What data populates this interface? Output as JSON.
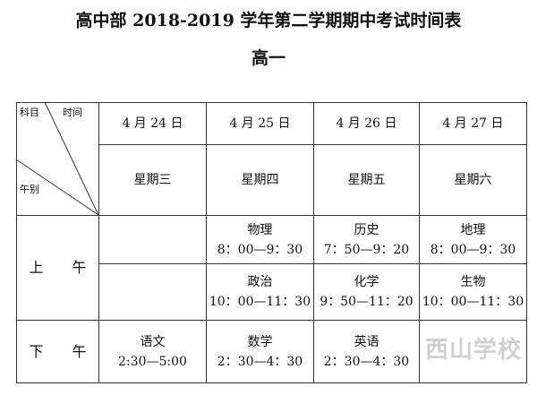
{
  "title": "高中部 2018-2019 学年第二学期期中考试时间表",
  "subtitle": "高一",
  "corner": {
    "subject": "科目",
    "time": "时间",
    "period": "午别"
  },
  "dates": [
    "4 月 24 日",
    "4 月 25 日",
    "4 月 26 日",
    "4 月 27 日"
  ],
  "weekdays": [
    "星期三",
    "星期四",
    "星期五",
    "星期六"
  ],
  "morning_label": "上　　午",
  "afternoon_label": "下　　午",
  "morning1": [
    {
      "s": "",
      "t": ""
    },
    {
      "s": "物理",
      "t": "8：00—9：30"
    },
    {
      "s": "历史",
      "t": "7：50—9：20"
    },
    {
      "s": "地理",
      "t": "8：00—9：30"
    }
  ],
  "morning2": [
    {
      "s": "",
      "t": ""
    },
    {
      "s": "政治",
      "t": "10：00—11：30"
    },
    {
      "s": "化学",
      "t": "9：50—11：20"
    },
    {
      "s": "生物",
      "t": "10：00—11：30"
    }
  ],
  "afternoon": [
    {
      "s": "语文",
      "t": "2:30—5:00"
    },
    {
      "s": "数学",
      "t": "2：30—4：30"
    },
    {
      "s": "英语",
      "t": "2：30—4：30"
    },
    {
      "s": "",
      "t": ""
    }
  ],
  "watermark": "西山学校"
}
